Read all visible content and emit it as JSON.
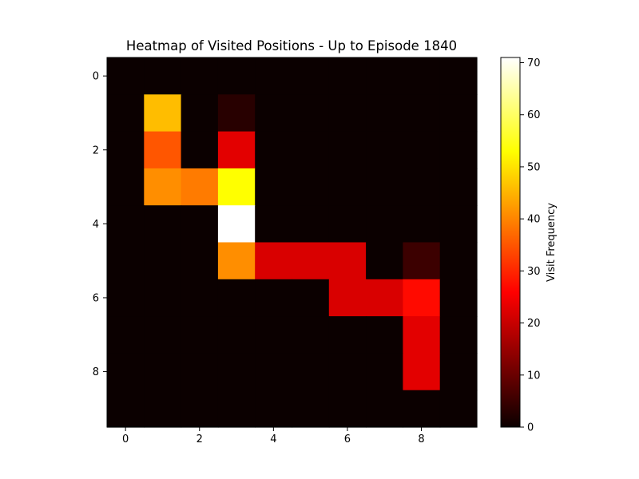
{
  "chart_data": {
    "type": "heatmap",
    "title": "Heatmap of Visited Positions - Up to Episode 1840",
    "xlabel": "",
    "ylabel": "",
    "colorbar_label": "Visit Frequency",
    "colormap": "hot",
    "vmin": 0,
    "vmax": 71,
    "x_ticks": [
      0,
      2,
      4,
      6,
      8
    ],
    "y_ticks": [
      0,
      2,
      4,
      6,
      8
    ],
    "colorbar_ticks": [
      0,
      10,
      20,
      30,
      40,
      50,
      60,
      70
    ],
    "rows": 10,
    "cols": 10,
    "values": [
      [
        0,
        0,
        0,
        0,
        0,
        0,
        0,
        0,
        0,
        0
      ],
      [
        0,
        46,
        0,
        3,
        0,
        0,
        0,
        0,
        0,
        0
      ],
      [
        0,
        35,
        0,
        22,
        0,
        0,
        0,
        0,
        0,
        0
      ],
      [
        0,
        41,
        39,
        53,
        0,
        0,
        0,
        0,
        0,
        0
      ],
      [
        0,
        0,
        0,
        71,
        0,
        0,
        0,
        0,
        0,
        0
      ],
      [
        0,
        0,
        0,
        41,
        21,
        21,
        21,
        0,
        5,
        0
      ],
      [
        0,
        0,
        0,
        0,
        0,
        0,
        21,
        21,
        27,
        0
      ],
      [
        0,
        0,
        0,
        0,
        0,
        0,
        0,
        0,
        22,
        0
      ],
      [
        0,
        0,
        0,
        0,
        0,
        0,
        0,
        0,
        22,
        0
      ],
      [
        0,
        0,
        0,
        0,
        0,
        0,
        0,
        0,
        0,
        0
      ]
    ]
  }
}
